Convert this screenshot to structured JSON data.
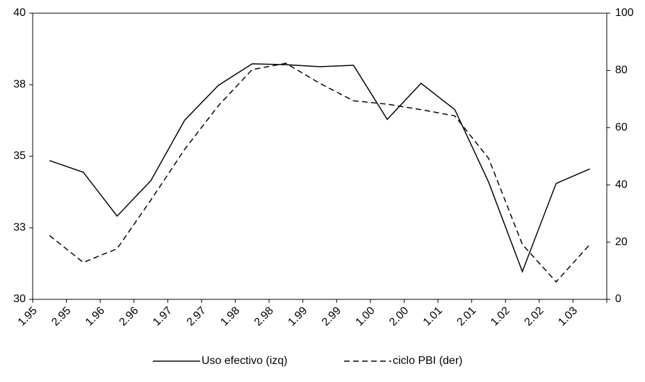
{
  "chart_data": {
    "type": "line",
    "categories": [
      "1.95",
      "2.95",
      "1.96",
      "2.96",
      "1.97",
      "2.97",
      "1.98",
      "2.98",
      "1.99",
      "2.99",
      "1.00",
      "2.00",
      "1.01",
      "2.01",
      "1.02",
      "2.02",
      "1.03",
      null
    ],
    "series": [
      {
        "name": "Uso efectivo (izq)",
        "color": "#000000",
        "dashed": false,
        "values": [
          34.85,
          34.44,
          32.91,
          34.15,
          36.26,
          37.48,
          38.23,
          38.2,
          38.13,
          38.18,
          36.29,
          37.55,
          36.63,
          34.1,
          30.97,
          34.05,
          34.56,
          null
        ]
      },
      {
        "name": "ciclo PBI (der)",
        "color": "#000000",
        "dashed": true,
        "axis": "y2",
        "values": [
          22.3,
          12.9,
          17.7,
          34.7,
          52.4,
          67.7,
          80.3,
          82.5,
          75.5,
          69.4,
          68.2,
          66.3,
          64.1,
          49.3,
          19.2,
          6.1,
          19.2,
          null
        ]
      }
    ],
    "ylim": [
      30,
      40
    ],
    "yticks": [
      30,
      {
        "value": 32.5,
        "label": "33"
      },
      35,
      {
        "value": 37.5,
        "label": "38"
      },
      40
    ],
    "y2lim": [
      0,
      100
    ],
    "y2ticks": [
      0,
      20,
      40,
      60,
      80,
      100
    ],
    "grid": false,
    "legend": "bottom"
  }
}
